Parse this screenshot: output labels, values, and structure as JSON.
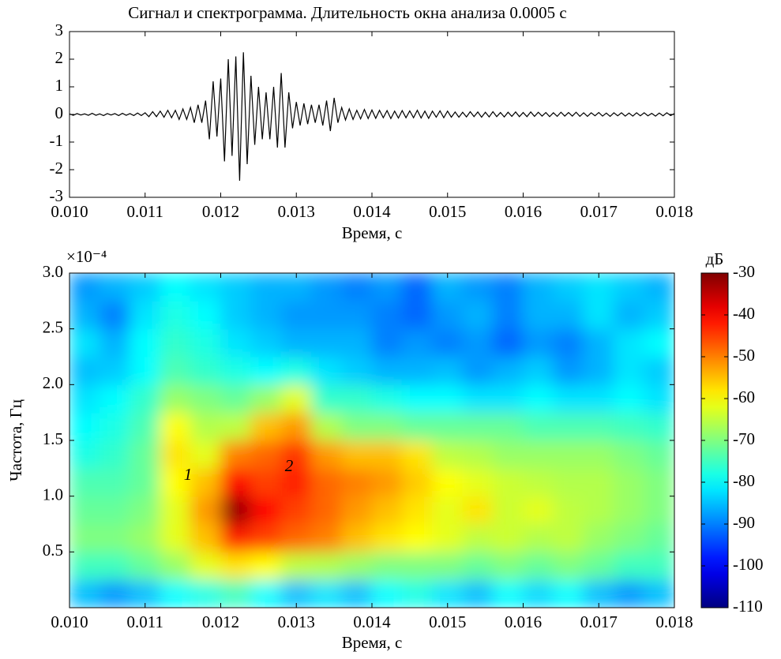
{
  "chart_data": [
    {
      "type": "line",
      "title": "Сигнал и спектрограмма. Длительность окна анализа 0.0005 с",
      "xlabel": "Время, с",
      "xlim": [
        0.01,
        0.018
      ],
      "xticks": [
        {
          "value": 0.01,
          "label": "0.010"
        },
        0.011,
        0.012,
        0.013,
        0.014,
        0.015,
        0.016,
        0.017,
        0.018
      ],
      "ylim": [
        -3,
        3
      ],
      "yticks": [
        -3,
        -2,
        -1,
        0,
        1,
        2,
        3
      ],
      "color": "#000000",
      "x": [
        0.01,
        0.01005,
        0.0101,
        0.01015,
        0.0102,
        0.01025,
        0.0103,
        0.01035,
        0.0104,
        0.01045,
        0.0105,
        0.01055,
        0.0106,
        0.01065,
        0.0107,
        0.01075,
        0.0108,
        0.01085,
        0.0109,
        0.01095,
        0.011,
        0.01105,
        0.0111,
        0.01115,
        0.0112,
        0.01125,
        0.0113,
        0.01135,
        0.0114,
        0.01145,
        0.0115,
        0.01155,
        0.0116,
        0.01165,
        0.0117,
        0.01175,
        0.0118,
        0.01185,
        0.0119,
        0.01195,
        0.012,
        0.01205,
        0.0121,
        0.01215,
        0.0122,
        0.01225,
        0.0123,
        0.01235,
        0.0124,
        0.01245,
        0.0125,
        0.01255,
        0.0126,
        0.01265,
        0.0127,
        0.01275,
        0.0128,
        0.01285,
        0.0129,
        0.01295,
        0.013,
        0.01305,
        0.0131,
        0.01315,
        0.0132,
        0.01325,
        0.0133,
        0.01335,
        0.0134,
        0.01345,
        0.0135,
        0.01355,
        0.0136,
        0.01365,
        0.0137,
        0.01375,
        0.0138,
        0.01385,
        0.0139,
        0.01395,
        0.014,
        0.01405,
        0.0141,
        0.01415,
        0.0142,
        0.01425,
        0.0143,
        0.01435,
        0.0144,
        0.01445,
        0.0145,
        0.01455,
        0.0146,
        0.01465,
        0.0147,
        0.01475,
        0.0148,
        0.01485,
        0.0149,
        0.01495,
        0.015,
        0.01505,
        0.0151,
        0.01515,
        0.0152,
        0.01525,
        0.0153,
        0.01535,
        0.0154,
        0.01545,
        0.0155,
        0.01555,
        0.0156,
        0.01565,
        0.0157,
        0.01575,
        0.0158,
        0.01585,
        0.0159,
        0.01595,
        0.016,
        0.01605,
        0.0161,
        0.01615,
        0.0162,
        0.01625,
        0.0163,
        0.01635,
        0.0164,
        0.01645,
        0.0165,
        0.01655,
        0.0166,
        0.01665,
        0.0167,
        0.01675,
        0.0168,
        0.01685,
        0.0169,
        0.01695,
        0.017,
        0.01705,
        0.0171,
        0.01715,
        0.0172,
        0.01725,
        0.0173,
        0.01735,
        0.0174,
        0.01745,
        0.0175,
        0.01755,
        0.0176,
        0.01765,
        0.0177,
        0.01775,
        0.0178,
        0.01785,
        0.0179,
        0.01795,
        0.018
      ],
      "values": [
        0.02,
        -0.03,
        0.03,
        -0.02,
        0.02,
        -0.03,
        0.04,
        -0.03,
        0.02,
        -0.04,
        0.03,
        -0.02,
        0.03,
        -0.04,
        0.04,
        -0.03,
        0.03,
        -0.04,
        0.05,
        -0.04,
        0.06,
        -0.08,
        0.1,
        -0.08,
        0.12,
        -0.1,
        0.15,
        -0.12,
        0.15,
        -0.18,
        0.2,
        -0.18,
        0.25,
        -0.3,
        0.35,
        -0.3,
        0.5,
        -0.9,
        1.2,
        -0.8,
        1.3,
        -1.7,
        2.0,
        -1.5,
        2.1,
        -2.4,
        2.25,
        -1.8,
        1.4,
        -1.1,
        1.0,
        -0.9,
        0.8,
        -0.9,
        1.0,
        -1.2,
        1.5,
        -1.2,
        0.8,
        -0.5,
        0.45,
        -0.4,
        0.4,
        -0.35,
        0.35,
        -0.3,
        0.35,
        -0.4,
        0.5,
        -0.6,
        0.6,
        -0.3,
        0.25,
        -0.2,
        0.2,
        -0.18,
        0.15,
        -0.16,
        0.18,
        -0.15,
        0.16,
        -0.14,
        0.15,
        -0.12,
        0.14,
        -0.15,
        0.12,
        -0.13,
        0.14,
        -0.12,
        0.13,
        -0.12,
        0.15,
        -0.13,
        0.12,
        -0.14,
        0.12,
        -0.1,
        0.13,
        -0.12,
        0.12,
        -0.1,
        0.09,
        -0.1,
        0.08,
        -0.09,
        0.1,
        -0.08,
        0.09,
        -0.1,
        0.08,
        -0.09,
        0.1,
        -0.08,
        0.07,
        -0.09,
        0.08,
        -0.07,
        0.09,
        -0.08,
        0.07,
        -0.08,
        0.09,
        -0.07,
        0.08,
        -0.06,
        0.07,
        -0.08,
        0.06,
        -0.07,
        0.08,
        -0.06,
        0.07,
        -0.06,
        0.08,
        -0.07,
        0.06,
        -0.07,
        0.06,
        -0.05,
        0.07,
        -0.06,
        0.05,
        -0.07,
        0.06,
        -0.05,
        0.06,
        -0.06,
        0.05,
        -0.06,
        0.06,
        -0.05,
        0.06,
        -0.05,
        0.04,
        -0.06,
        0.05,
        -0.05,
        0.06,
        -0.04,
        0.03
      ]
    },
    {
      "type": "heatmap",
      "xlabel": "Время, с",
      "ylabel": "Частота, Гц",
      "axis_multiplier": "×10⁻⁴",
      "colorbar_label": "дБ",
      "colormap": "jet",
      "xlim": [
        0.01,
        0.018
      ],
      "xticks": [
        {
          "value": 0.01,
          "label": "0.010"
        },
        0.011,
        0.012,
        0.013,
        0.014,
        0.015,
        0.016,
        0.017,
        0.018
      ],
      "ylim": [
        0,
        3
      ],
      "yticks": [
        0.5,
        {
          "value": 1,
          "label": "1.0"
        },
        1.5,
        {
          "value": 2,
          "label": "2.0"
        },
        2.5,
        {
          "value": 3,
          "label": "3.0"
        }
      ],
      "clim": [
        -110,
        -30
      ],
      "cticks": [
        -30,
        -40,
        -50,
        -60,
        -70,
        -80,
        -90,
        -100,
        -110
      ],
      "annotations": [
        {
          "text": "1"
        },
        {
          "text": "2"
        }
      ],
      "x": [
        0.0102,
        0.0106,
        0.011,
        0.0114,
        0.0118,
        0.0122,
        0.0126,
        0.013,
        0.0134,
        0.0138,
        0.0142,
        0.0146,
        0.015,
        0.0154,
        0.0158,
        0.0162,
        0.0166,
        0.017,
        0.0174,
        0.0178
      ],
      "y": [
        0.125,
        0.375,
        0.625,
        0.875,
        1.125,
        1.375,
        1.625,
        1.875,
        2.125,
        2.375,
        2.625,
        2.875
      ],
      "z": [
        [
          -85,
          -88,
          -85,
          -80,
          -78,
          -75,
          -80,
          -85,
          -82,
          -85,
          -80,
          -78,
          -82,
          -85,
          -80,
          -83,
          -80,
          -85,
          -88,
          -85
        ],
        [
          -75,
          -75,
          -72,
          -68,
          -62,
          -58,
          -60,
          -65,
          -66,
          -68,
          -70,
          -70,
          -70,
          -72,
          -70,
          -72,
          -70,
          -72,
          -75,
          -75
        ],
        [
          -70,
          -70,
          -68,
          -62,
          -55,
          -42,
          -45,
          -48,
          -50,
          -55,
          -58,
          -60,
          -62,
          -65,
          -64,
          -66,
          -65,
          -68,
          -70,
          -72
        ],
        [
          -72,
          -72,
          -70,
          -62,
          -52,
          -32,
          -40,
          -45,
          -48,
          -52,
          -55,
          -58,
          -62,
          -58,
          -64,
          -62,
          -65,
          -66,
          -68,
          -70
        ],
        [
          -74,
          -74,
          -72,
          -60,
          -55,
          -40,
          -45,
          -42,
          -48,
          -50,
          -52,
          -56,
          -60,
          -62,
          -64,
          -65,
          -66,
          -66,
          -68,
          -70
        ],
        [
          -78,
          -76,
          -72,
          -58,
          -62,
          -50,
          -48,
          -44,
          -52,
          -55,
          -55,
          -58,
          -65,
          -66,
          -68,
          -68,
          -68,
          -68,
          -70,
          -72
        ],
        [
          -80,
          -78,
          -74,
          -60,
          -66,
          -65,
          -55,
          -52,
          -66,
          -70,
          -70,
          -72,
          -72,
          -72,
          -72,
          -74,
          -74,
          -74,
          -75,
          -76
        ],
        [
          -82,
          -80,
          -76,
          -68,
          -70,
          -72,
          -68,
          -62,
          -76,
          -76,
          -78,
          -80,
          -80,
          -82,
          -82,
          -80,
          -82,
          -82,
          -80,
          -82
        ],
        [
          -85,
          -84,
          -80,
          -74,
          -76,
          -78,
          -80,
          -78,
          -82,
          -84,
          -86,
          -86,
          -85,
          -88,
          -86,
          -84,
          -88,
          -86,
          -82,
          -84
        ],
        [
          -82,
          -86,
          -80,
          -76,
          -78,
          -82,
          -84,
          -86,
          -86,
          -86,
          -90,
          -88,
          -90,
          -88,
          -92,
          -88,
          -90,
          -86,
          -82,
          -80
        ],
        [
          -86,
          -90,
          -82,
          -78,
          -80,
          -84,
          -86,
          -88,
          -88,
          -88,
          -90,
          -92,
          -88,
          -86,
          -90,
          -86,
          -86,
          -82,
          -86,
          -84
        ],
        [
          -88,
          -86,
          -84,
          -80,
          -82,
          -84,
          -86,
          -86,
          -88,
          -90,
          -88,
          -92,
          -86,
          -88,
          -90,
          -86,
          -84,
          -82,
          -84,
          -86
        ]
      ]
    }
  ]
}
